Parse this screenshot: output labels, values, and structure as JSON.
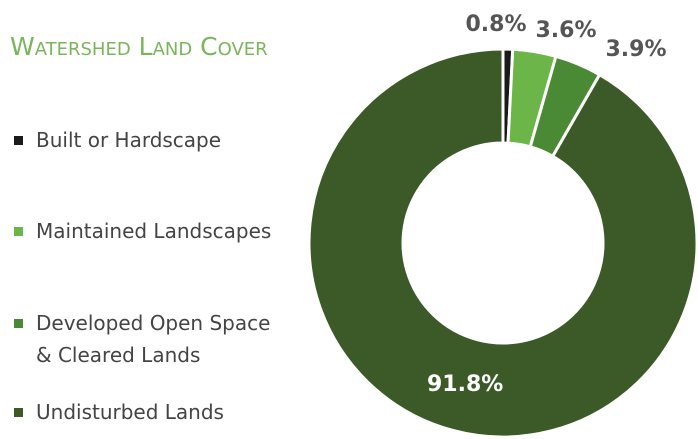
{
  "chart_data": {
    "type": "donut",
    "title": "Watershed Land Cover",
    "categories": [
      "Built or Hardscape",
      "Maintained Landscapes",
      "Developed Open Space & Cleared Lands",
      "Undisturbed Lands"
    ],
    "values": [
      0.8,
      3.6,
      3.9,
      91.8
    ],
    "value_labels": [
      "0.8%",
      "3.6%",
      "3.9%",
      "91.8%"
    ],
    "colors": [
      "#1a1a1a",
      "#6cb548",
      "#4b8a35",
      "#3b5a28"
    ]
  }
}
